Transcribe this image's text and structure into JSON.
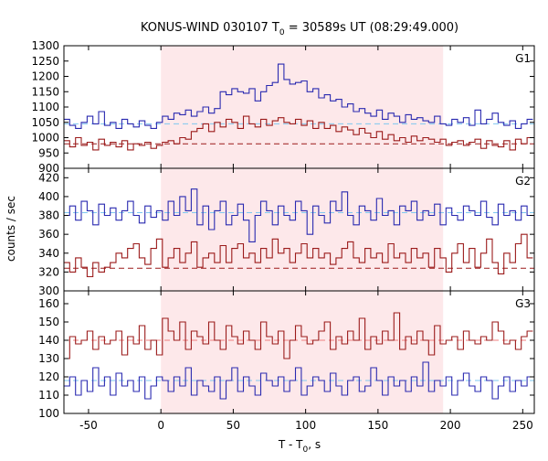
{
  "title": {
    "prefix": "KONUS-WIND 030107 T",
    "sub": "0",
    "suffix": " = 30589s UT (08:29:49.000)"
  },
  "xlabel": {
    "prefix": "T - T",
    "sub": "0",
    "suffix": ", s"
  },
  "ylabel": "counts / sec",
  "colors": {
    "blue": "#2a2ab0",
    "red": "#9b1b1b",
    "fit_blue": "#7fc8f0",
    "fit_red": "#f08080",
    "shade": "#fde8ea"
  },
  "chart_data": [
    {
      "panel": "G1",
      "type": "line",
      "drawstyle": "steps",
      "ylim": [
        900,
        1300
      ],
      "xlim": [
        -67,
        258
      ],
      "xticks": [
        -50,
        0,
        50,
        100,
        150,
        200,
        250
      ],
      "yticks": [
        900,
        950,
        1000,
        1050,
        1100,
        1150,
        1200,
        1250,
        1300
      ],
      "shaded_interval": [
        0,
        195
      ],
      "series": [
        {
          "color": "blue",
          "background": 1045,
          "x": [
            -67,
            -63,
            -59,
            -55,
            -51,
            -47,
            -43,
            -39,
            -35,
            -31,
            -27,
            -23,
            -19,
            -15,
            -11,
            -7,
            -3,
            1,
            5,
            9,
            13,
            17,
            21,
            25,
            29,
            33,
            37,
            41,
            45,
            49,
            53,
            57,
            61,
            65,
            69,
            73,
            77,
            81,
            85,
            89,
            93,
            97,
            101,
            105,
            109,
            113,
            117,
            121,
            125,
            129,
            133,
            137,
            141,
            145,
            149,
            153,
            157,
            161,
            165,
            169,
            173,
            177,
            181,
            185,
            189,
            193,
            197,
            201,
            205,
            209,
            213,
            217,
            221,
            225,
            229,
            233,
            237,
            241,
            245,
            249,
            253
          ],
          "y": [
            1060,
            1040,
            1030,
            1050,
            1070,
            1045,
            1085,
            1040,
            1050,
            1030,
            1060,
            1045,
            1035,
            1055,
            1040,
            1030,
            1050,
            1070,
            1060,
            1080,
            1075,
            1090,
            1070,
            1085,
            1100,
            1080,
            1095,
            1150,
            1140,
            1160,
            1150,
            1145,
            1160,
            1120,
            1150,
            1170,
            1180,
            1240,
            1190,
            1175,
            1180,
            1185,
            1150,
            1160,
            1130,
            1140,
            1120,
            1125,
            1100,
            1110,
            1085,
            1095,
            1080,
            1070,
            1090,
            1060,
            1080,
            1070,
            1050,
            1075,
            1060,
            1065,
            1055,
            1050,
            1070,
            1045,
            1040,
            1060,
            1050,
            1065,
            1040,
            1090,
            1045,
            1060,
            1080,
            1050,
            1040,
            1055,
            1030,
            1045,
            1060
          ]
        },
        {
          "color": "red",
          "background": 980,
          "x": [
            -67,
            -63,
            -59,
            -55,
            -51,
            -47,
            -43,
            -39,
            -35,
            -31,
            -27,
            -23,
            -19,
            -15,
            -11,
            -7,
            -3,
            1,
            5,
            9,
            13,
            17,
            21,
            25,
            29,
            33,
            37,
            41,
            45,
            49,
            53,
            57,
            61,
            65,
            69,
            73,
            77,
            81,
            85,
            89,
            93,
            97,
            101,
            105,
            109,
            113,
            117,
            121,
            125,
            129,
            133,
            137,
            141,
            145,
            149,
            153,
            157,
            161,
            165,
            169,
            173,
            177,
            181,
            185,
            189,
            193,
            197,
            201,
            205,
            209,
            213,
            217,
            221,
            225,
            229,
            233,
            237,
            241,
            245,
            249,
            253
          ],
          "y": [
            990,
            970,
            1000,
            975,
            985,
            960,
            995,
            975,
            985,
            970,
            990,
            960,
            980,
            975,
            985,
            965,
            975,
            985,
            990,
            980,
            1000,
            995,
            1020,
            1030,
            1045,
            1020,
            1050,
            1035,
            1060,
            1050,
            1030,
            1070,
            1045,
            1035,
            1060,
            1040,
            1055,
            1065,
            1050,
            1045,
            1060,
            1040,
            1055,
            1030,
            1050,
            1030,
            1040,
            1020,
            1035,
            1025,
            1010,
            1030,
            1015,
            1000,
            1020,
            995,
            1010,
            990,
            1000,
            985,
            1005,
            990,
            1000,
            995,
            985,
            995,
            975,
            985,
            990,
            975,
            985,
            995,
            965,
            990,
            975,
            970,
            990,
            960,
            995,
            980,
            1000
          ]
        }
      ]
    },
    {
      "panel": "G2",
      "type": "line",
      "drawstyle": "steps",
      "ylim": [
        300,
        430
      ],
      "xlim": [
        -67,
        258
      ],
      "xticks": [
        -50,
        0,
        50,
        100,
        150,
        200,
        250
      ],
      "yticks": [
        300,
        320,
        340,
        360,
        380,
        400,
        420
      ],
      "shaded_interval": [
        0,
        195
      ],
      "series": [
        {
          "color": "blue",
          "background": 383,
          "x": [
            -67,
            -63,
            -59,
            -55,
            -51,
            -47,
            -43,
            -39,
            -35,
            -31,
            -27,
            -23,
            -19,
            -15,
            -11,
            -7,
            -3,
            1,
            5,
            9,
            13,
            17,
            21,
            25,
            29,
            33,
            37,
            41,
            45,
            49,
            53,
            57,
            61,
            65,
            69,
            73,
            77,
            81,
            85,
            89,
            93,
            97,
            101,
            105,
            109,
            113,
            117,
            121,
            125,
            129,
            133,
            137,
            141,
            145,
            149,
            153,
            157,
            161,
            165,
            169,
            173,
            177,
            181,
            185,
            189,
            193,
            197,
            201,
            205,
            209,
            213,
            217,
            221,
            225,
            229,
            233,
            237,
            241,
            245,
            249,
            253
          ],
          "y": [
            380,
            390,
            375,
            395,
            385,
            370,
            392,
            380,
            388,
            375,
            385,
            395,
            380,
            372,
            390,
            378,
            385,
            375,
            395,
            380,
            400,
            385,
            408,
            370,
            390,
            365,
            385,
            395,
            370,
            380,
            392,
            375,
            352,
            380,
            395,
            385,
            370,
            390,
            380,
            375,
            395,
            385,
            360,
            390,
            380,
            372,
            395,
            385,
            405,
            380,
            370,
            390,
            385,
            375,
            398,
            380,
            385,
            370,
            390,
            385,
            395,
            375,
            385,
            380,
            392,
            370,
            388,
            380,
            375,
            390,
            385,
            380,
            395,
            378,
            370,
            392,
            380,
            385,
            375,
            390,
            380
          ]
        },
        {
          "color": "red",
          "background": 324,
          "x": [
            -67,
            -63,
            -59,
            -55,
            -51,
            -47,
            -43,
            -39,
            -35,
            -31,
            -27,
            -23,
            -19,
            -15,
            -11,
            -7,
            -3,
            1,
            5,
            9,
            13,
            17,
            21,
            25,
            29,
            33,
            37,
            41,
            45,
            49,
            53,
            57,
            61,
            65,
            69,
            73,
            77,
            81,
            85,
            89,
            93,
            97,
            101,
            105,
            109,
            113,
            117,
            121,
            125,
            129,
            133,
            137,
            141,
            145,
            149,
            153,
            157,
            161,
            165,
            169,
            173,
            177,
            181,
            185,
            189,
            193,
            197,
            201,
            205,
            209,
            213,
            217,
            221,
            225,
            229,
            233,
            237,
            241,
            245,
            249,
            253
          ],
          "y": [
            330,
            320,
            335,
            325,
            315,
            330,
            320,
            325,
            330,
            340,
            335,
            345,
            350,
            335,
            328,
            345,
            355,
            325,
            335,
            345,
            330,
            340,
            352,
            325,
            335,
            340,
            330,
            348,
            330,
            345,
            350,
            335,
            340,
            330,
            345,
            335,
            355,
            340,
            345,
            330,
            340,
            350,
            335,
            345,
            335,
            340,
            328,
            335,
            345,
            352,
            335,
            330,
            345,
            335,
            340,
            330,
            350,
            335,
            340,
            330,
            345,
            335,
            340,
            325,
            345,
            335,
            320,
            340,
            350,
            330,
            345,
            325,
            340,
            355,
            330,
            318,
            340,
            330,
            350,
            360,
            335
          ]
        }
      ]
    },
    {
      "panel": "G3",
      "type": "line",
      "drawstyle": "steps",
      "ylim": [
        100,
        167
      ],
      "xlim": [
        -67,
        258
      ],
      "xticks": [
        -50,
        0,
        50,
        100,
        150,
        200,
        250
      ],
      "yticks": [
        100,
        110,
        120,
        130,
        140,
        150,
        160
      ],
      "shaded_interval": [
        0,
        195
      ],
      "series": [
        {
          "color": "red",
          "background": 140,
          "x": [
            -67,
            -63,
            -59,
            -55,
            -51,
            -47,
            -43,
            -39,
            -35,
            -31,
            -27,
            -23,
            -19,
            -15,
            -11,
            -7,
            -3,
            1,
            5,
            9,
            13,
            17,
            21,
            25,
            29,
            33,
            37,
            41,
            45,
            49,
            53,
            57,
            61,
            65,
            69,
            73,
            77,
            81,
            85,
            89,
            93,
            97,
            101,
            105,
            109,
            113,
            117,
            121,
            125,
            129,
            133,
            137,
            141,
            145,
            149,
            153,
            157,
            161,
            165,
            169,
            173,
            177,
            181,
            185,
            189,
            193,
            197,
            201,
            205,
            209,
            213,
            217,
            221,
            225,
            229,
            233,
            237,
            241,
            245,
            249,
            253
          ],
          "y": [
            130,
            142,
            138,
            140,
            145,
            135,
            142,
            138,
            140,
            145,
            132,
            142,
            138,
            148,
            135,
            140,
            132,
            152,
            145,
            140,
            150,
            135,
            145,
            142,
            138,
            150,
            140,
            135,
            148,
            142,
            138,
            145,
            140,
            135,
            150,
            142,
            138,
            145,
            130,
            140,
            148,
            142,
            138,
            140,
            145,
            150,
            135,
            142,
            138,
            145,
            140,
            152,
            135,
            142,
            138,
            145,
            140,
            155,
            135,
            142,
            138,
            145,
            140,
            132,
            148,
            138,
            140,
            142,
            135,
            145,
            140,
            138,
            142,
            140,
            150,
            145,
            138,
            140,
            135,
            142,
            145
          ]
        },
        {
          "color": "blue",
          "background": 118,
          "x": [
            -67,
            -63,
            -59,
            -55,
            -51,
            -47,
            -43,
            -39,
            -35,
            -31,
            -27,
            -23,
            -19,
            -15,
            -11,
            -7,
            -3,
            1,
            5,
            9,
            13,
            17,
            21,
            25,
            29,
            33,
            37,
            41,
            45,
            49,
            53,
            57,
            61,
            65,
            69,
            73,
            77,
            81,
            85,
            89,
            93,
            97,
            101,
            105,
            109,
            113,
            117,
            121,
            125,
            129,
            133,
            137,
            141,
            145,
            149,
            153,
            157,
            161,
            165,
            169,
            173,
            177,
            181,
            185,
            189,
            193,
            197,
            201,
            205,
            209,
            213,
            217,
            221,
            225,
            229,
            233,
            237,
            241,
            245,
            249,
            253
          ],
          "y": [
            115,
            120,
            110,
            118,
            112,
            125,
            115,
            120,
            110,
            122,
            115,
            118,
            112,
            120,
            108,
            115,
            120,
            118,
            112,
            120,
            115,
            125,
            110,
            118,
            115,
            112,
            120,
            108,
            118,
            125,
            112,
            120,
            115,
            110,
            122,
            118,
            115,
            120,
            112,
            118,
            125,
            110,
            115,
            120,
            118,
            112,
            122,
            115,
            110,
            118,
            120,
            112,
            115,
            125,
            118,
            110,
            120,
            115,
            118,
            112,
            120,
            115,
            128,
            112,
            118,
            115,
            120,
            110,
            118,
            122,
            115,
            112,
            120,
            118,
            108,
            115,
            120,
            112,
            118,
            115,
            120
          ]
        }
      ]
    }
  ]
}
